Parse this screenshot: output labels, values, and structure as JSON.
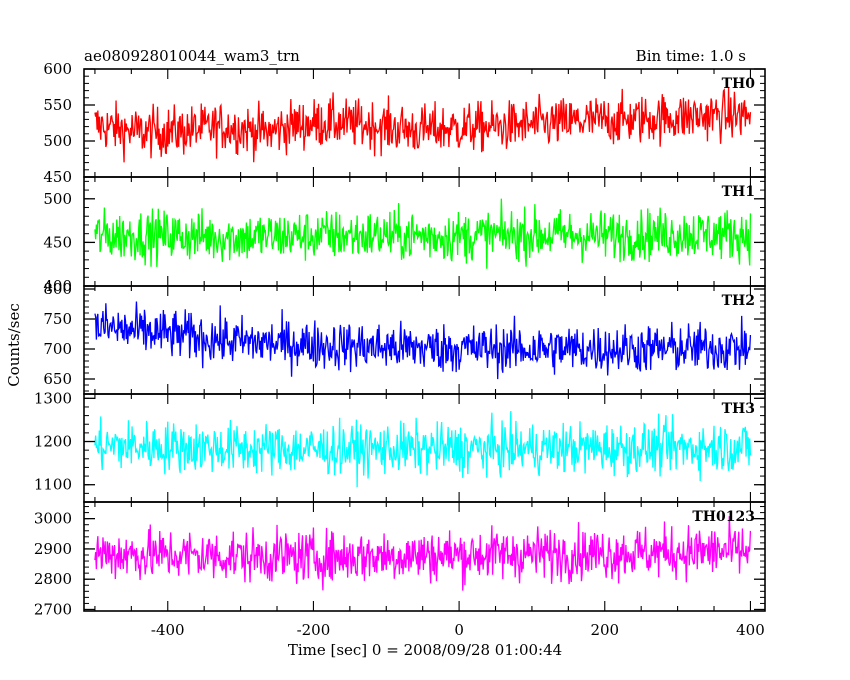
{
  "chart_data": {
    "type": "line",
    "title": "ae080928010044_wam3_trn",
    "subtitle": "Bin time: 1.0 s",
    "xlabel": "Time [sec] 0 = 2008/09/28 01:00:44",
    "ylabel": "Counts/sec",
    "xlim": [
      -515,
      420
    ],
    "x_range": [
      -500,
      400
    ],
    "x_ticks": [
      -400,
      -200,
      0,
      200,
      400
    ],
    "bin_time_s": 1.0,
    "grid": false,
    "legend": "none",
    "panels": [
      {
        "name": "TH0",
        "color": "#ff0000",
        "ylim": [
          450,
          600
        ],
        "y_ticks": [
          450,
          500,
          550,
          600
        ],
        "mean": 522,
        "noise_amplitude": 38,
        "x": [
          -500,
          -440,
          -380,
          -320,
          -260,
          -230,
          -180,
          -120,
          -60,
          0,
          60,
          120,
          180,
          240,
          300,
          360,
          400
        ],
        "y": [
          522,
          512,
          514,
          520,
          512,
          522,
          526,
          522,
          515,
          518,
          520,
          524,
          528,
          530,
          533,
          536,
          536
        ]
      },
      {
        "name": "TH1",
        "color": "#00ff00",
        "ylim": [
          400,
          525
        ],
        "y_ticks": [
          400,
          450,
          500
        ],
        "mean": 458,
        "noise_amplitude": 32,
        "x": [
          -500,
          -400,
          -300,
          -200,
          -100,
          0,
          100,
          200,
          300,
          400
        ],
        "y": [
          458,
          458,
          456,
          458,
          458,
          457,
          459,
          458,
          460,
          459
        ]
      },
      {
        "name": "TH2",
        "color": "#0000ff",
        "ylim": [
          625,
          805
        ],
        "y_ticks": [
          650,
          700,
          750,
          800
        ],
        "mean": 705,
        "noise_amplitude": 45,
        "x": [
          -500,
          -450,
          -400,
          -300,
          -200,
          -100,
          0,
          100,
          200,
          300,
          400
        ],
        "y": [
          738,
          730,
          725,
          712,
          707,
          703,
          701,
          700,
          700,
          701,
          702
        ]
      },
      {
        "name": "TH3",
        "color": "#00ffff",
        "ylim": [
          1060,
          1310
        ],
        "y_ticks": [
          1100,
          1200,
          1300
        ],
        "mean": 1185,
        "noise_amplitude": 65,
        "x": [
          -500,
          -400,
          -300,
          -200,
          -100,
          0,
          100,
          200,
          300,
          400
        ],
        "y": [
          1190,
          1188,
          1184,
          1182,
          1183,
          1182,
          1184,
          1185,
          1186,
          1188
        ]
      },
      {
        "name": "TH0123",
        "color": "#ff00ff",
        "ylim": [
          2695,
          3055
        ],
        "y_ticks": [
          2700,
          2800,
          2900,
          3000
        ],
        "mean": 2880,
        "noise_amplitude": 95,
        "x": [
          -500,
          -400,
          -300,
          -200,
          -100,
          0,
          100,
          200,
          300,
          400
        ],
        "y": [
          2885,
          2880,
          2876,
          2872,
          2878,
          2880,
          2884,
          2886,
          2890,
          2893
        ]
      }
    ]
  }
}
